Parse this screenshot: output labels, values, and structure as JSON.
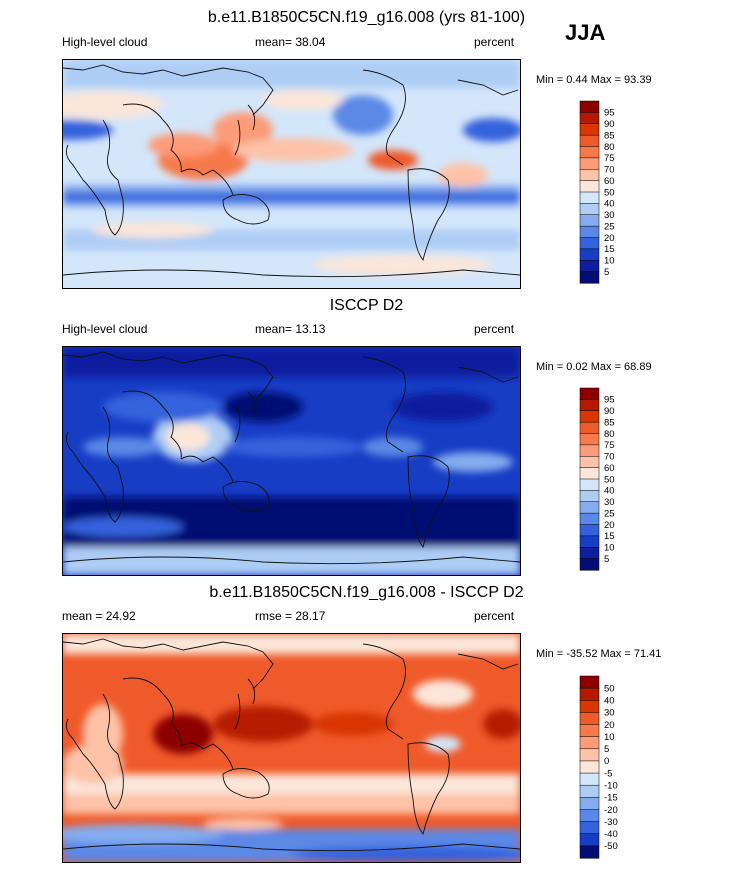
{
  "season": "JJA",
  "panels": [
    {
      "title": "b.e11.B1850C5CN.f19_g16.008 (yrs 81-100)",
      "left_label": "High-level cloud",
      "center_label": "mean=  38.04",
      "right_label": "percent",
      "minmax": "Min =   0.44 Max =  93.39",
      "colorbar": {
        "labels": [
          "95",
          "90",
          "85",
          "80",
          "75",
          "70",
          "60",
          "50",
          "40",
          "30",
          "25",
          "20",
          "15",
          "10",
          "5"
        ],
        "colors": [
          "#8c0000",
          "#b51a00",
          "#d93600",
          "#ef5a2a",
          "#f7794c",
          "#fc9b78",
          "#fdc2a8",
          "#fbe6d9",
          "#d4e6fa",
          "#aecdf5",
          "#84acee",
          "#5b88e6",
          "#3462dd",
          "#173dc5",
          "#0d1f9e",
          "#050e73"
        ]
      }
    },
    {
      "title": "ISCCP D2",
      "left_label": "High-level cloud",
      "center_label": "mean=  13.13",
      "right_label": "percent",
      "minmax": "Min =   0.02 Max =  68.89",
      "colorbar": {
        "labels": [
          "95",
          "90",
          "85",
          "80",
          "75",
          "70",
          "60",
          "50",
          "40",
          "30",
          "25",
          "20",
          "15",
          "10",
          "5"
        ],
        "colors": [
          "#8c0000",
          "#b51a00",
          "#d93600",
          "#ef5a2a",
          "#f7794c",
          "#fc9b78",
          "#fdc2a8",
          "#fbe6d9",
          "#d4e6fa",
          "#aecdf5",
          "#84acee",
          "#5b88e6",
          "#3462dd",
          "#173dc5",
          "#0d1f9e",
          "#050e73"
        ]
      }
    },
    {
      "title": "b.e11.B1850C5CN.f19_g16.008 - ISCCP D2",
      "left_label": "mean =  24.92",
      "center_label": "rmse =  28.17",
      "right_label": "percent",
      "minmax": "Min = -35.52 Max =  71.41",
      "colorbar": {
        "labels": [
          "50",
          "40",
          "30",
          "20",
          "10",
          "5",
          "0",
          "-5",
          "-10",
          "-15",
          "-20",
          "-30",
          "-40",
          "-50"
        ],
        "colors": [
          "#8c0000",
          "#b51a00",
          "#d93600",
          "#ef5a2a",
          "#f7794c",
          "#fc9b78",
          "#fdc2a8",
          "#fbe6d9",
          "#d4e6fa",
          "#aecdf5",
          "#84acee",
          "#5b88e6",
          "#3462dd",
          "#173dc5",
          "#050e73"
        ]
      }
    }
  ]
}
